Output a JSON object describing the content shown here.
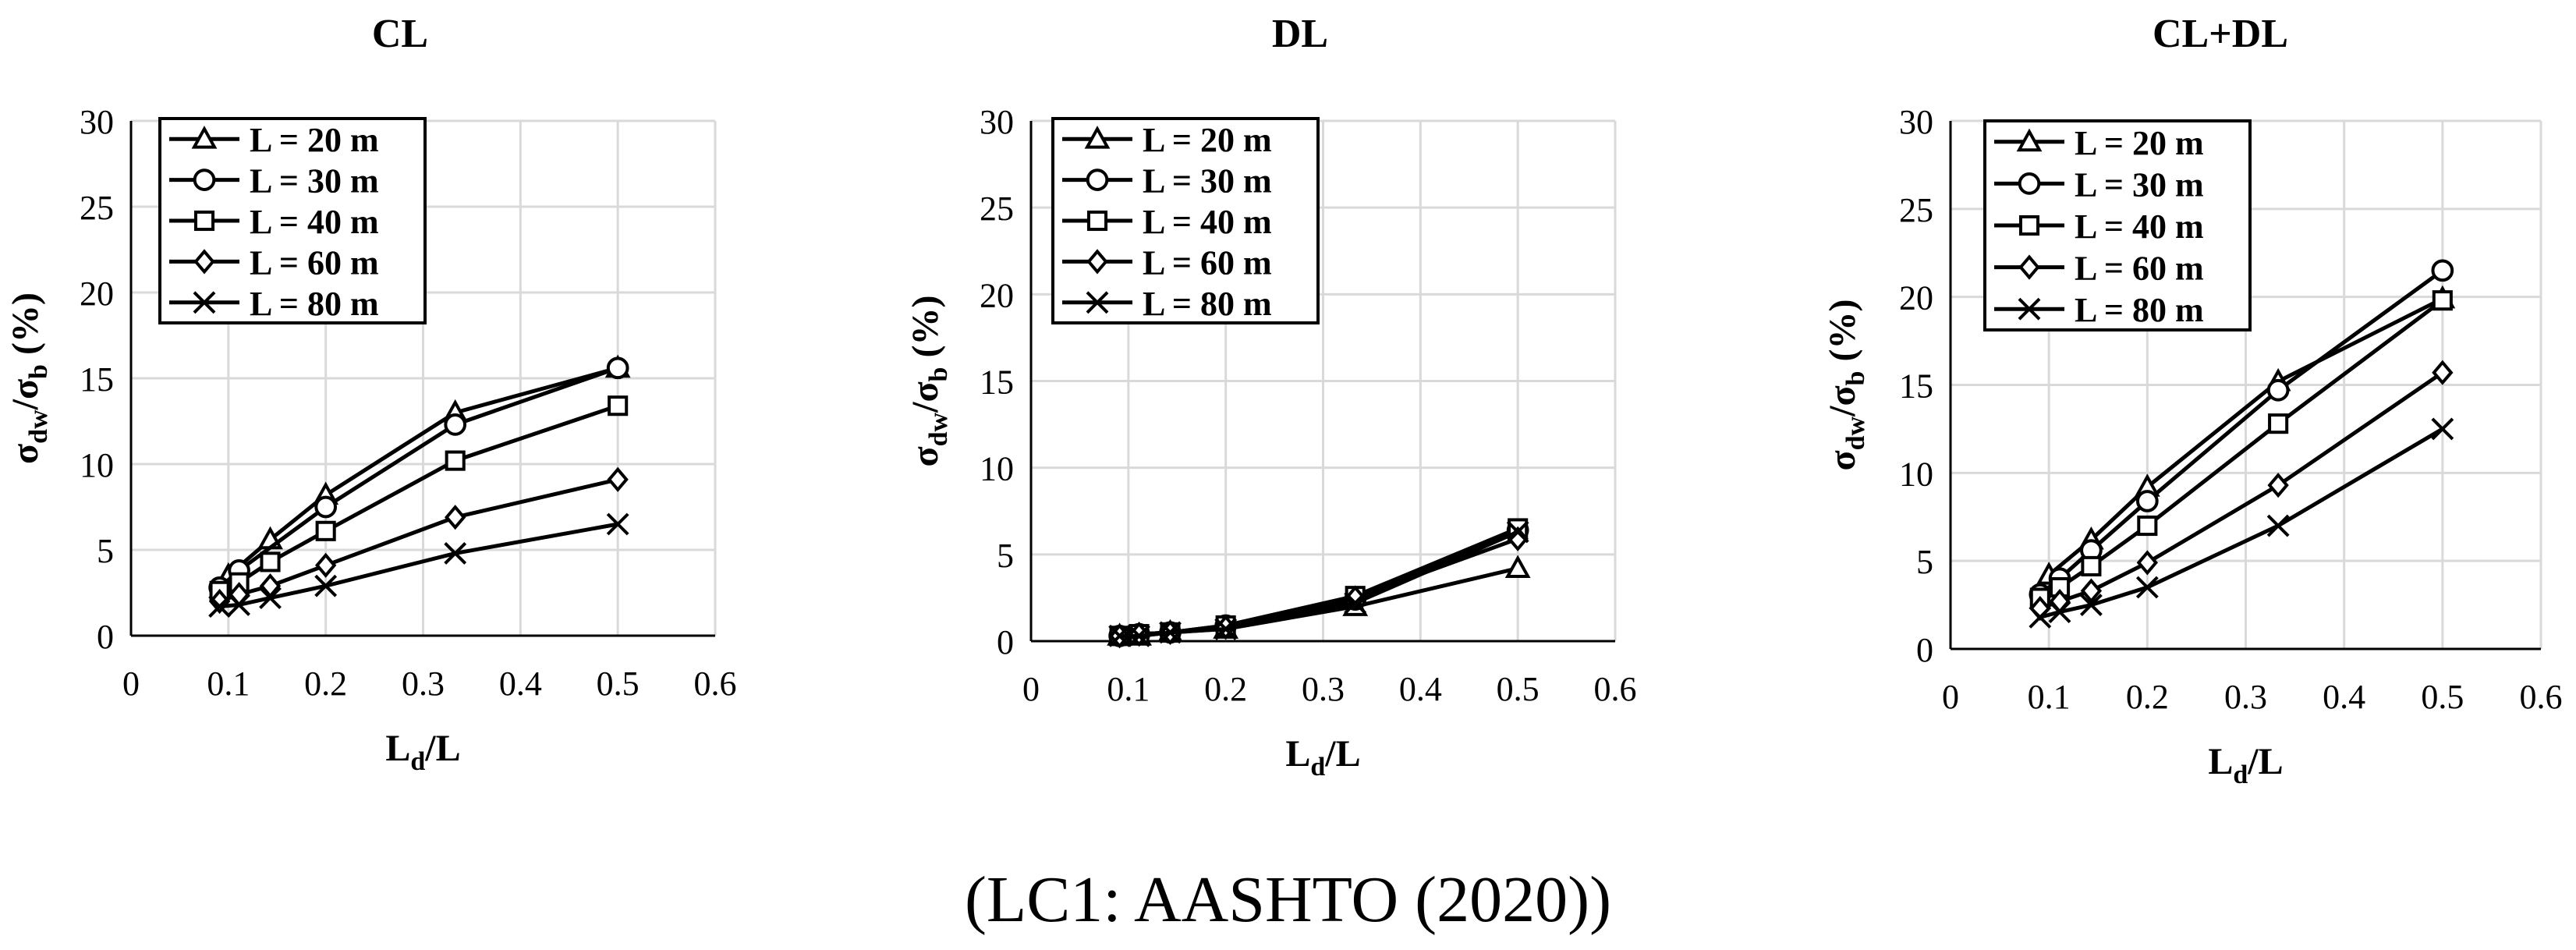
{
  "caption": "(LC1: AASHTO (2020))",
  "colors": {
    "line": "#000000",
    "grid": "#d9d9d9",
    "background": "#ffffff"
  },
  "chart_data": [
    {
      "type": "line",
      "title": "CL",
      "xlabel": "Ld/L",
      "ylabel": "σdw/σb (%)",
      "xlim": [
        0,
        0.6
      ],
      "ylim": [
        0,
        30
      ],
      "xticks": [
        0,
        0.1,
        0.2,
        0.3,
        0.4,
        0.5,
        0.6
      ],
      "yticks": [
        0,
        5,
        10,
        15,
        20,
        25,
        30
      ],
      "grid": true,
      "legend_position": "top-left",
      "series": [
        {
          "name": "L = 20 m",
          "marker": "triangle",
          "x": [
            0.1,
            0.143,
            0.2,
            0.333,
            0.5
          ],
          "y": [
            3.5,
            5.6,
            8.2,
            13.0,
            15.6
          ]
        },
        {
          "name": "L = 30 m",
          "marker": "circle",
          "x": [
            0.091,
            0.111,
            0.2,
            0.333,
            0.5
          ],
          "y": [
            2.8,
            3.8,
            7.5,
            12.3,
            15.6
          ]
        },
        {
          "name": "L = 40 m",
          "marker": "square",
          "x": [
            0.091,
            0.111,
            0.143,
            0.2,
            0.333,
            0.5
          ],
          "y": [
            2.6,
            3.1,
            4.3,
            6.1,
            10.2,
            13.4
          ]
        },
        {
          "name": "L = 60 m",
          "marker": "diamond",
          "x": [
            0.091,
            0.111,
            0.143,
            0.2,
            0.333,
            0.5
          ],
          "y": [
            2.0,
            2.4,
            2.9,
            4.1,
            6.9,
            9.1
          ]
        },
        {
          "name": "L = 80 m",
          "marker": "x",
          "x": [
            0.091,
            0.111,
            0.143,
            0.2,
            0.333,
            0.5
          ],
          "y": [
            1.7,
            1.8,
            2.2,
            2.9,
            4.8,
            6.5
          ]
        }
      ]
    },
    {
      "type": "line",
      "title": "DL",
      "xlabel": "Ld/L",
      "ylabel": "σdw/σb (%)",
      "xlim": [
        0,
        0.6
      ],
      "ylim": [
        0,
        30
      ],
      "xticks": [
        0,
        0.1,
        0.2,
        0.3,
        0.4,
        0.5,
        0.6
      ],
      "yticks": [
        0,
        5,
        10,
        15,
        20,
        25,
        30
      ],
      "grid": true,
      "legend_position": "top-left",
      "series": [
        {
          "name": "L = 20 m",
          "marker": "triangle",
          "x": [
            0.091,
            0.111,
            0.143,
            0.2,
            0.333,
            0.5
          ],
          "y": [
            0.3,
            0.3,
            0.5,
            0.7,
            2.0,
            4.2
          ]
        },
        {
          "name": "L = 30 m",
          "marker": "circle",
          "x": [
            0.091,
            0.111,
            0.143,
            0.2,
            0.333,
            0.5
          ],
          "y": [
            0.3,
            0.4,
            0.5,
            0.9,
            2.4,
            6.4
          ]
        },
        {
          "name": "L = 40 m",
          "marker": "square",
          "x": [
            0.091,
            0.111,
            0.143,
            0.2,
            0.333,
            0.5
          ],
          "y": [
            0.3,
            0.4,
            0.5,
            0.9,
            2.6,
            6.5
          ]
        },
        {
          "name": "L = 60 m",
          "marker": "diamond",
          "x": [
            0.091,
            0.111,
            0.143,
            0.2,
            0.333,
            0.5
          ],
          "y": [
            0.3,
            0.4,
            0.5,
            0.8,
            2.5,
            5.9
          ]
        },
        {
          "name": "L = 80 m",
          "marker": "x",
          "x": [
            0.091,
            0.111,
            0.143,
            0.2,
            0.333,
            0.5
          ],
          "y": [
            0.3,
            0.3,
            0.5,
            0.7,
            2.2,
            6.3
          ]
        }
      ]
    },
    {
      "type": "line",
      "title": "CL+DL",
      "xlabel": "Ld/L",
      "ylabel": "σdw/σb (%)",
      "xlim": [
        0,
        0.6
      ],
      "ylim": [
        0,
        30
      ],
      "xticks": [
        0,
        0.1,
        0.2,
        0.3,
        0.4,
        0.5,
        0.6
      ],
      "yticks": [
        0,
        5,
        10,
        15,
        20,
        25,
        30
      ],
      "grid": true,
      "legend_position": "top-left",
      "series": [
        {
          "name": "L = 20 m",
          "marker": "triangle",
          "x": [
            0.1,
            0.143,
            0.2,
            0.333,
            0.5
          ],
          "y": [
            4.2,
            6.2,
            9.2,
            15.2,
            19.9
          ]
        },
        {
          "name": "L = 30 m",
          "marker": "circle",
          "x": [
            0.091,
            0.111,
            0.143,
            0.2,
            0.333,
            0.5
          ],
          "y": [
            3.1,
            4.0,
            5.6,
            8.4,
            14.7,
            21.5
          ]
        },
        {
          "name": "L = 40 m",
          "marker": "square",
          "x": [
            0.091,
            0.111,
            0.143,
            0.2,
            0.333,
            0.5
          ],
          "y": [
            2.9,
            3.5,
            4.7,
            7.0,
            12.8,
            19.8
          ]
        },
        {
          "name": "L = 60 m",
          "marker": "diamond",
          "x": [
            0.091,
            0.111,
            0.143,
            0.2,
            0.333,
            0.5
          ],
          "y": [
            2.3,
            2.7,
            3.3,
            4.9,
            9.3,
            15.7
          ]
        },
        {
          "name": "L = 80 m",
          "marker": "x",
          "x": [
            0.091,
            0.111,
            0.143,
            0.2,
            0.333,
            0.5
          ],
          "y": [
            1.8,
            2.1,
            2.5,
            3.5,
            7.0,
            12.5
          ]
        }
      ]
    }
  ]
}
